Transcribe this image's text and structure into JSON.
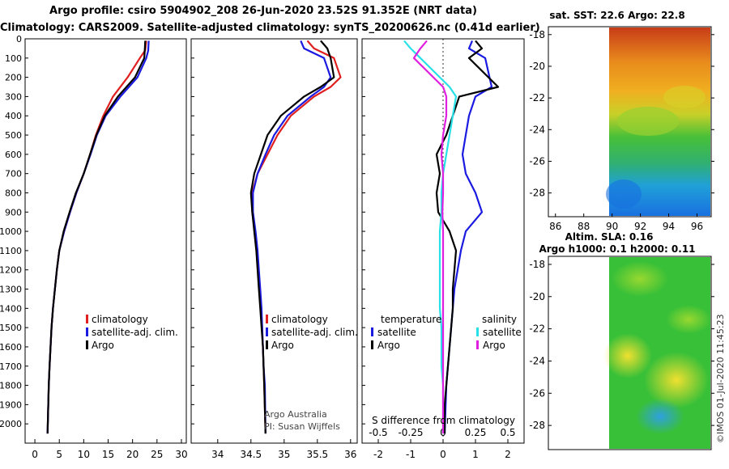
{
  "header": {
    "line1": "Argo profile: csiro 5904902_208 26-Jun-2020 23.52S 91.352E (NRT data)",
    "line2": "Climatology: CARS2009. Satellite-adjusted climatology: synTS_20200626.nc (0.41d earlier)"
  },
  "colors": {
    "climatology": "#e02020",
    "satellite": "#1a1ae0",
    "argo": "#000000",
    "satellite_salinity": "#28e0e8",
    "argo_salinity": "#e020e0"
  },
  "chart_data": [
    {
      "type": "line",
      "name": "temperature-profile",
      "xlim": [
        -2,
        31
      ],
      "ylim": [
        2100,
        0
      ],
      "xticks": [
        0,
        5,
        10,
        15,
        20,
        25,
        30
      ],
      "yticks": [
        0,
        100,
        200,
        300,
        400,
        500,
        600,
        700,
        800,
        900,
        1000,
        1100,
        1200,
        1300,
        1400,
        1500,
        1600,
        1700,
        1800,
        1900,
        2000
      ],
      "legend": [
        "climatology",
        "satellite-adj. clim.",
        "Argo"
      ],
      "series": [
        {
          "name": "climatology",
          "color": "#e02020",
          "x": [
            22.8,
            22.6,
            21.5,
            19,
            16,
            14,
            12.5,
            11.3,
            10,
            8.5,
            7.2,
            6,
            5,
            4.5,
            4.1,
            3.7,
            3.4,
            3.2,
            3,
            2.85,
            2.75,
            2.6
          ],
          "y": [
            10,
            60,
            100,
            200,
            300,
            400,
            500,
            600,
            700,
            800,
            900,
            1000,
            1100,
            1200,
            1300,
            1400,
            1500,
            1600,
            1700,
            1800,
            1900,
            2050
          ]
        },
        {
          "name": "satellite-adj. clim.",
          "color": "#1a1ae0",
          "x": [
            23.3,
            23.2,
            22.8,
            21,
            17.5,
            14.5,
            12.7,
            11.4,
            10,
            8.5,
            7.2,
            6,
            5,
            4.5,
            4.1,
            3.7,
            3.4,
            3.2,
            3,
            2.85,
            2.75,
            2.6
          ],
          "y": [
            10,
            60,
            100,
            200,
            300,
            400,
            500,
            600,
            700,
            800,
            900,
            1000,
            1100,
            1200,
            1300,
            1400,
            1500,
            1600,
            1700,
            1800,
            1900,
            2050
          ]
        },
        {
          "name": "Argo",
          "color": "#000000",
          "x": [
            22.6,
            22.5,
            22.4,
            20.5,
            17,
            14.3,
            12.6,
            11.3,
            10,
            8.4,
            7.1,
            5.9,
            5,
            4.5,
            4.1,
            3.7,
            3.4,
            3.2,
            3,
            2.85,
            2.75,
            2.6
          ],
          "y": [
            10,
            60,
            100,
            200,
            300,
            400,
            500,
            600,
            700,
            800,
            900,
            1000,
            1100,
            1200,
            1300,
            1400,
            1500,
            1600,
            1700,
            1800,
            1900,
            2050
          ]
        }
      ]
    },
    {
      "type": "line",
      "name": "salinity-profile",
      "xlim": [
        33.6,
        36.1
      ],
      "ylim": [
        2100,
        0
      ],
      "xticks": [
        34,
        34.5,
        35,
        35.5,
        36
      ],
      "tick_labels": [
        "34",
        "34.5",
        "35",
        "35.5",
        "36"
      ],
      "legend": [
        "climatology",
        "satellite-adj. clim.",
        "Argo"
      ],
      "annotations": [
        "Argo Australia",
        "PI: Susan Wijffels"
      ],
      "series": [
        {
          "name": "climatology",
          "color": "#e02020",
          "x": [
            35.35,
            35.45,
            35.75,
            35.85,
            35.7,
            35.45,
            35.1,
            34.9,
            34.75,
            34.6,
            34.52,
            34.52,
            34.56,
            34.59,
            34.61,
            34.63,
            34.65,
            34.67,
            34.68,
            34.69,
            34.7,
            34.72
          ],
          "y": [
            10,
            50,
            100,
            200,
            250,
            300,
            400,
            500,
            600,
            700,
            800,
            900,
            1000,
            1100,
            1200,
            1300,
            1400,
            1500,
            1600,
            1700,
            1800,
            2050
          ]
        },
        {
          "name": "satellite-adj. clim.",
          "color": "#1a1ae0",
          "x": [
            35.25,
            35.3,
            35.6,
            35.7,
            35.6,
            35.4,
            35.05,
            34.85,
            34.72,
            34.6,
            34.53,
            34.53,
            34.57,
            34.6,
            34.62,
            34.64,
            34.66,
            34.67,
            34.68,
            34.69,
            34.71,
            34.72
          ],
          "y": [
            10,
            50,
            100,
            200,
            250,
            300,
            400,
            500,
            600,
            700,
            800,
            900,
            1000,
            1100,
            1200,
            1300,
            1400,
            1500,
            1600,
            1700,
            1800,
            2050
          ]
        },
        {
          "name": "Argo",
          "color": "#000000",
          "x": [
            35.55,
            35.65,
            35.7,
            35.75,
            35.55,
            35.3,
            34.95,
            34.75,
            34.65,
            34.55,
            34.5,
            34.52,
            34.55,
            34.58,
            34.6,
            34.62,
            34.64,
            34.66,
            34.68,
            34.69,
            34.7,
            34.72
          ],
          "y": [
            10,
            50,
            100,
            200,
            250,
            300,
            400,
            500,
            600,
            700,
            800,
            900,
            1000,
            1100,
            1200,
            1300,
            1400,
            1500,
            1600,
            1700,
            1800,
            2050
          ]
        }
      ]
    },
    {
      "type": "line",
      "name": "difference-profile",
      "xlim": [
        -2.5,
        2.5
      ],
      "ylim": [
        2100,
        0
      ],
      "xticks": [
        -2,
        -1,
        0,
        1,
        2
      ],
      "secondary_xticks": [
        -0.5,
        -0.25,
        0,
        0.25,
        0.5
      ],
      "xlabel": "S difference from climatology",
      "legend": {
        "temperature": [
          "satellite",
          "Argo"
        ],
        "salinity": [
          "satellite",
          "Argo"
        ]
      },
      "series": [
        {
          "name": "temperature satellite",
          "color": "#1a1ae0",
          "x": [
            0.9,
            0.8,
            1.3,
            1.5,
            1.0,
            0.8,
            0.7,
            0.6,
            0.7,
            1.0,
            1.2,
            0.7,
            0.55,
            0.45,
            0.35,
            0.3,
            0.25,
            0.2,
            0.15,
            0.1,
            0.08,
            0.05
          ],
          "y": [
            10,
            50,
            100,
            250,
            300,
            400,
            500,
            600,
            700,
            800,
            900,
            1000,
            1100,
            1200,
            1300,
            1400,
            1500,
            1600,
            1700,
            1800,
            1900,
            2050
          ]
        },
        {
          "name": "temperature Argo",
          "color": "#000000",
          "x": [
            1.0,
            1.2,
            0.8,
            1.7,
            0.5,
            0.3,
            0.1,
            -0.2,
            -0.1,
            -0.2,
            -0.15,
            0.2,
            0.4,
            0.35,
            0.3,
            0.3,
            0.25,
            0.2,
            0.15,
            0.1,
            0.05,
            0.05
          ],
          "y": [
            10,
            50,
            100,
            250,
            300,
            400,
            500,
            600,
            700,
            800,
            900,
            1000,
            1100,
            1200,
            1300,
            1400,
            1500,
            1600,
            1700,
            1800,
            1900,
            2050
          ]
        },
        {
          "name": "salinity satellite",
          "color": "#28e0e8",
          "x": [
            -1.2,
            -1.0,
            -0.7,
            0.2,
            0.4,
            0.3,
            0.2,
            0.1,
            0.0,
            -0.05,
            -0.05,
            -0.1,
            -0.1,
            -0.1,
            -0.1,
            -0.1,
            -0.05,
            -0.05,
            -0.05,
            0.0,
            0.0,
            0.0
          ],
          "y": [
            10,
            50,
            100,
            250,
            300,
            400,
            500,
            600,
            700,
            800,
            900,
            1000,
            1100,
            1200,
            1300,
            1400,
            1500,
            1600,
            1700,
            1800,
            1900,
            2050
          ]
        },
        {
          "name": "salinity Argo",
          "color": "#e020e0",
          "x": [
            -0.5,
            -0.7,
            -0.9,
            0.0,
            0.1,
            0.1,
            0.0,
            -0.05,
            0.0,
            0.0,
            -0.02,
            0.0,
            0.0,
            0.0,
            0.0,
            0.0,
            0.0,
            0.0,
            0.0,
            0.0,
            0.0,
            0.0
          ],
          "y": [
            10,
            50,
            100,
            250,
            300,
            400,
            500,
            600,
            700,
            800,
            900,
            1000,
            1100,
            1200,
            1300,
            1400,
            1500,
            1600,
            1700,
            1800,
            1900,
            2050
          ]
        }
      ]
    },
    {
      "type": "heatmap",
      "name": "sst-map",
      "title": "sat. SST: 22.6 Argo: 22.8",
      "xlim": [
        85.5,
        97
      ],
      "ylim": [
        -29.5,
        -17.5
      ],
      "xticks": [
        86,
        88,
        90,
        92,
        94,
        96
      ],
      "yticks": [
        -18,
        -20,
        -22,
        -24,
        -26,
        -28
      ]
    },
    {
      "type": "heatmap",
      "name": "sla-map",
      "title": "Altim. SLA: 0.16",
      "subtitle": "Argo h1000: 0.1 h2000: 0.11",
      "xlim": [
        85.5,
        97
      ],
      "ylim": [
        -29.5,
        -17.5
      ],
      "yticks": [
        -18,
        -20,
        -22,
        -24,
        -26,
        -28
      ],
      "watermark": "©IMOS 01-Jul-2020 11:45:23"
    }
  ]
}
